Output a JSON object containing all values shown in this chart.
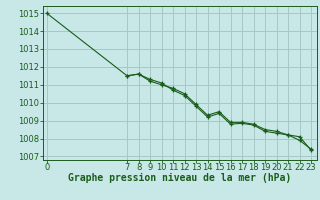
{
  "xlabel": "Graphe pression niveau de la mer (hPa)",
  "bg_color": "#c8e8e8",
  "plot_bg_color": "#c8e8e8",
  "grid_color": "#a8c8c8",
  "line_color": "#1a5c1a",
  "x_ticks": [
    0,
    7,
    8,
    9,
    10,
    11,
    12,
    13,
    14,
    15,
    16,
    17,
    18,
    19,
    20,
    21,
    22,
    23
  ],
  "ylim": [
    1006.8,
    1015.4
  ],
  "yticks": [
    1007,
    1008,
    1009,
    1010,
    1011,
    1012,
    1013,
    1014,
    1015
  ],
  "xlim": [
    -0.3,
    23.5
  ],
  "series1_x": [
    0,
    7,
    8,
    9,
    10,
    11,
    12,
    13,
    14,
    15,
    16,
    17,
    18,
    19,
    20,
    21,
    22,
    23
  ],
  "series1_y": [
    1015.0,
    1011.5,
    1011.6,
    1011.2,
    1011.0,
    1010.8,
    1010.5,
    1009.9,
    1009.3,
    1009.5,
    1008.9,
    1008.9,
    1008.8,
    1008.5,
    1008.4,
    1008.2,
    1007.9,
    1007.4
  ],
  "series2_x": [
    7,
    8,
    9,
    10,
    11,
    12,
    13,
    14,
    15,
    16,
    17,
    18,
    19,
    20,
    21,
    22,
    23
  ],
  "series2_y": [
    1011.5,
    1011.6,
    1011.3,
    1011.1,
    1010.7,
    1010.4,
    1009.8,
    1009.2,
    1009.4,
    1008.8,
    1008.85,
    1008.75,
    1008.4,
    1008.3,
    1008.2,
    1008.1,
    1007.35
  ],
  "xlabel_fontsize": 7,
  "tick_fontsize": 6
}
